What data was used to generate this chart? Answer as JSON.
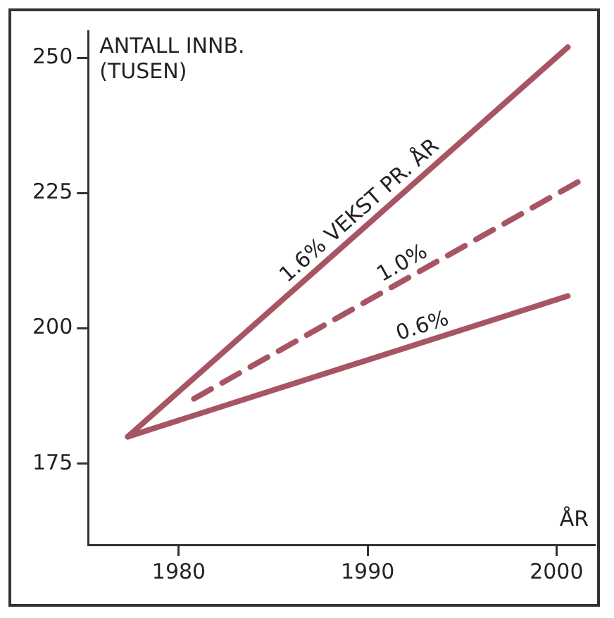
{
  "chart_data": {
    "type": "line",
    "xlabel": "ÅR",
    "ylabel": "ANTALL INNB. (TUSEN)",
    "xlim": [
      1975.2,
      2002
    ],
    "xticks": [
      1980,
      1990,
      2000
    ],
    "ylim": [
      160,
      255
    ],
    "yticks": [
      175,
      200,
      225,
      250
    ],
    "grid": false,
    "legend": false,
    "marker": "none",
    "series": [
      {
        "name": "1.6% VEKST PR. ÅR",
        "color": "#a85563",
        "x": [
          1977.3,
          2000.6
        ],
        "values": [
          180,
          252
        ],
        "line_style": "solid"
      },
      {
        "name": "1.0%",
        "color": "#a85563",
        "x": [
          1980.8,
          2001.6
        ],
        "values": [
          187,
          228
        ],
        "line_style": "dashed"
      },
      {
        "name": "0.6%",
        "color": "#a85563",
        "x": [
          1977.3,
          2000.6
        ],
        "values": [
          180,
          206
        ],
        "line_style": "solid"
      }
    ]
  }
}
